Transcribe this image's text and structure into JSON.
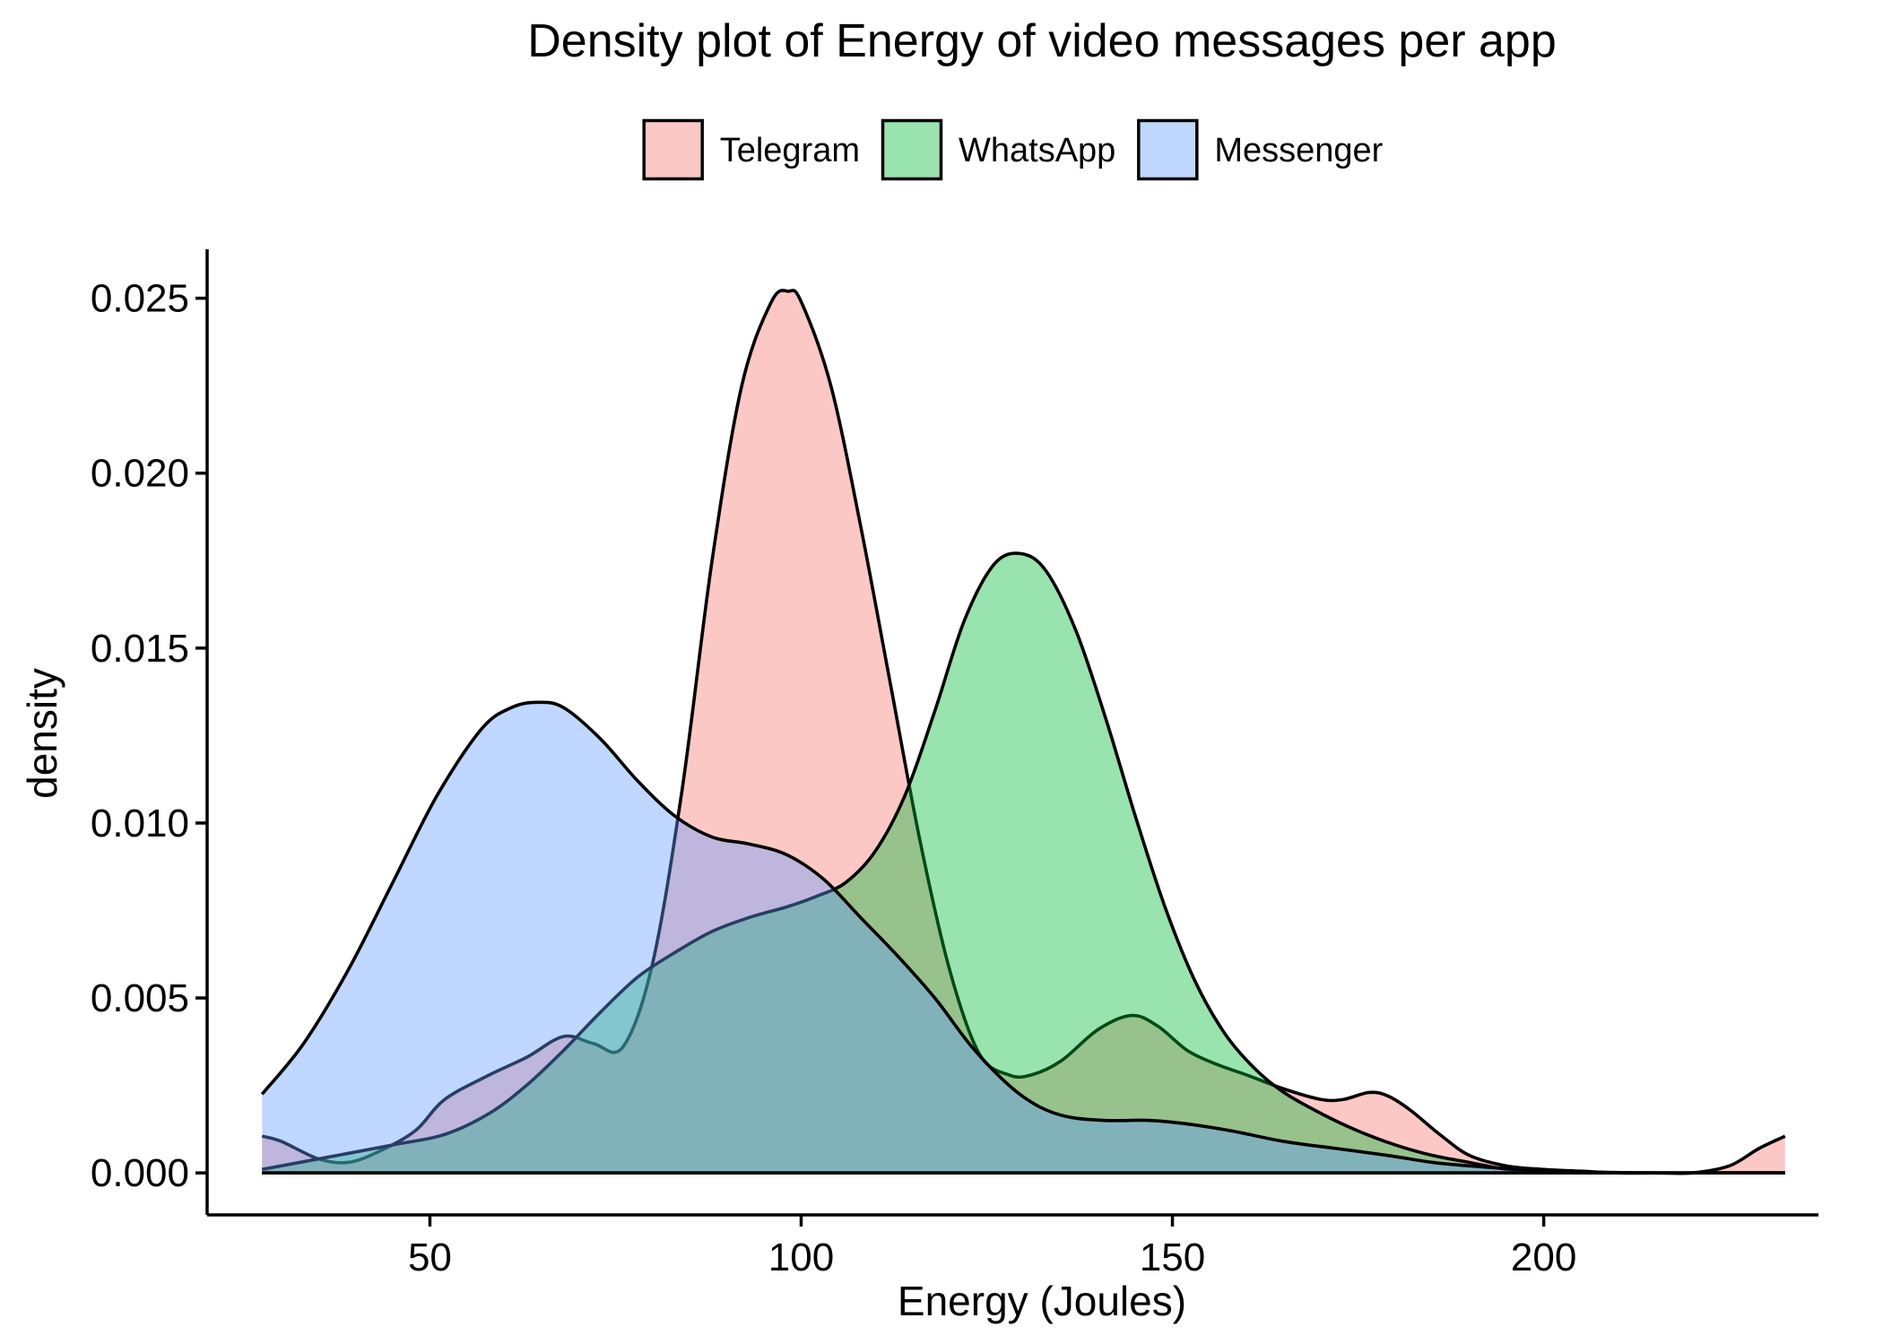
{
  "chart_data": {
    "type": "area",
    "title": "Density plot of Energy of video messages per app",
    "xlabel": "Energy (Joules)",
    "ylabel": "density",
    "xlim": [
      20,
      237
    ],
    "ylim": [
      -0.0012,
      0.0264
    ],
    "x_ticks": [
      50,
      100,
      150,
      200
    ],
    "y_ticks": [
      0.0,
      0.005,
      0.01,
      0.015,
      0.02,
      0.025
    ],
    "x_tick_labels": [
      "50",
      "100",
      "150",
      "200"
    ],
    "y_tick_labels": [
      "0.000",
      "0.005",
      "0.010",
      "0.015",
      "0.020",
      "0.025"
    ],
    "grid": false,
    "legend_position": "top",
    "series": [
      {
        "name": "Telegram",
        "color": "#F8766D",
        "points": [
          [
            27.4,
            0.00105
          ],
          [
            30,
            0.0009
          ],
          [
            35,
            0.0004
          ],
          [
            39,
            0.0003
          ],
          [
            43,
            0.0006
          ],
          [
            48,
            0.0012
          ],
          [
            52,
            0.0021
          ],
          [
            58,
            0.0028
          ],
          [
            63,
            0.0033
          ],
          [
            68,
            0.0039
          ],
          [
            72,
            0.0037
          ],
          [
            76,
            0.0036
          ],
          [
            80,
            0.006
          ],
          [
            84,
            0.011
          ],
          [
            88,
            0.0175
          ],
          [
            92,
            0.0225
          ],
          [
            96,
            0.0249
          ],
          [
            98.3,
            0.0252
          ],
          [
            100,
            0.0249
          ],
          [
            104,
            0.0225
          ],
          [
            108,
            0.0185
          ],
          [
            112,
            0.014
          ],
          [
            116,
            0.0095
          ],
          [
            120,
            0.0058
          ],
          [
            124,
            0.0034
          ],
          [
            128,
            0.0028
          ],
          [
            131,
            0.0028
          ],
          [
            135,
            0.0032
          ],
          [
            140,
            0.0041
          ],
          [
            144.5,
            0.0045
          ],
          [
            148,
            0.0042
          ],
          [
            152,
            0.0035
          ],
          [
            156,
            0.0031
          ],
          [
            160,
            0.0028
          ],
          [
            165,
            0.0024
          ],
          [
            170,
            0.0021
          ],
          [
            173,
            0.0021
          ],
          [
            176.5,
            0.0023
          ],
          [
            179,
            0.0022
          ],
          [
            182,
            0.0018
          ],
          [
            186,
            0.0011
          ],
          [
            190,
            0.0005
          ],
          [
            195,
            0.0002
          ],
          [
            200,
            0.0001
          ],
          [
            205,
            5e-05
          ],
          [
            210,
            0.0
          ],
          [
            215,
            0.0
          ],
          [
            220,
            0.0
          ],
          [
            225,
            0.0002
          ],
          [
            229,
            0.0007
          ],
          [
            232.5,
            0.00105
          ]
        ]
      },
      {
        "name": "WhatsApp",
        "color": "#00BA38",
        "points": [
          [
            27.4,
            0.0001
          ],
          [
            35,
            0.0004
          ],
          [
            45,
            0.0008
          ],
          [
            52,
            0.0011
          ],
          [
            58,
            0.0017
          ],
          [
            63,
            0.0025
          ],
          [
            68,
            0.0035
          ],
          [
            73,
            0.0046
          ],
          [
            78,
            0.0056
          ],
          [
            83,
            0.0063
          ],
          [
            88,
            0.0069
          ],
          [
            93,
            0.0073
          ],
          [
            98,
            0.0076
          ],
          [
            102,
            0.0079
          ],
          [
            106,
            0.0083
          ],
          [
            110,
            0.0092
          ],
          [
            114,
            0.0108
          ],
          [
            118,
            0.0132
          ],
          [
            122,
            0.0158
          ],
          [
            126,
            0.0174
          ],
          [
            129.6,
            0.0177
          ],
          [
            133,
            0.0172
          ],
          [
            137,
            0.0155
          ],
          [
            141,
            0.013
          ],
          [
            145,
            0.0102
          ],
          [
            149,
            0.0076
          ],
          [
            153,
            0.0055
          ],
          [
            157,
            0.004
          ],
          [
            161,
            0.003
          ],
          [
            165,
            0.0023
          ],
          [
            170,
            0.0017
          ],
          [
            175,
            0.0012
          ],
          [
            180,
            0.0008
          ],
          [
            185,
            0.0005
          ],
          [
            190,
            0.0003
          ],
          [
            195,
            0.0001
          ],
          [
            200,
            5e-05
          ],
          [
            210,
            0.0
          ],
          [
            220,
            0.0
          ],
          [
            232.5,
            0.0
          ]
        ]
      },
      {
        "name": "Messenger",
        "color": "#619CFF",
        "points": [
          [
            27.4,
            0.00225
          ],
          [
            33,
            0.0037
          ],
          [
            39,
            0.0058
          ],
          [
            45,
            0.0083
          ],
          [
            51,
            0.0108
          ],
          [
            57,
            0.0127
          ],
          [
            61,
            0.0133
          ],
          [
            64.5,
            0.01345
          ],
          [
            68,
            0.0133
          ],
          [
            73,
            0.0124
          ],
          [
            78,
            0.0112
          ],
          [
            83,
            0.0102
          ],
          [
            88,
            0.0096
          ],
          [
            93,
            0.0094
          ],
          [
            98,
            0.0091
          ],
          [
            103,
            0.0084
          ],
          [
            108,
            0.0073
          ],
          [
            113,
            0.0062
          ],
          [
            118,
            0.005
          ],
          [
            123,
            0.0036
          ],
          [
            128,
            0.0025
          ],
          [
            132,
            0.0019
          ],
          [
            136,
            0.0016
          ],
          [
            141,
            0.0015
          ],
          [
            147,
            0.0015
          ],
          [
            152,
            0.0014
          ],
          [
            158,
            0.0012
          ],
          [
            165,
            0.0009
          ],
          [
            172,
            0.0007
          ],
          [
            179,
            0.0005
          ],
          [
            185,
            0.0003
          ],
          [
            190,
            0.0002
          ],
          [
            197,
            0.0001
          ],
          [
            205,
            3e-05
          ],
          [
            215,
            0.0
          ],
          [
            225,
            0.0
          ],
          [
            232.5,
            0.0
          ]
        ]
      }
    ]
  }
}
